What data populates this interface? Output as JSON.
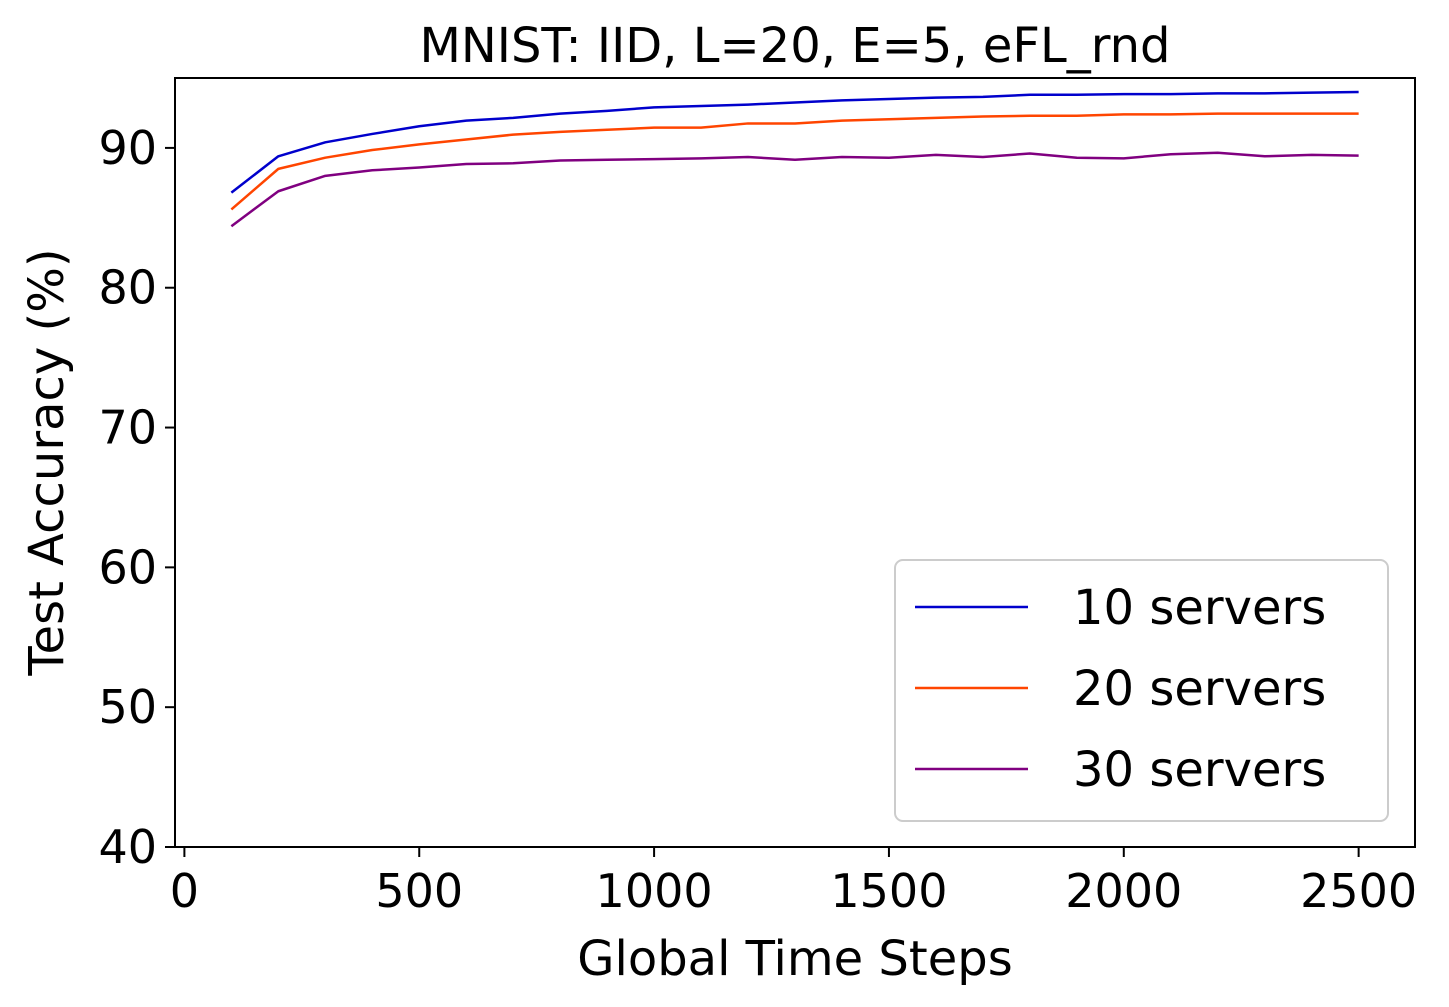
{
  "chart_data": {
    "type": "line",
    "title": "MNIST: IID, L=20, E=5, eFL_rnd",
    "xlabel": "Global Time Steps",
    "ylabel": "Test Accuracy (%)",
    "xlim": [
      -20,
      2620
    ],
    "ylim": [
      40,
      95
    ],
    "xticks": [
      0,
      500,
      1000,
      1500,
      2000,
      2500
    ],
    "yticks": [
      40,
      50,
      60,
      70,
      80,
      90
    ],
    "grid": false,
    "legend_position": "lower-right",
    "x": [
      100,
      200,
      300,
      400,
      500,
      600,
      700,
      800,
      900,
      1000,
      1100,
      1200,
      1300,
      1400,
      1500,
      1600,
      1700,
      1800,
      1900,
      2000,
      2100,
      2200,
      2300,
      2400,
      2500
    ],
    "series": [
      {
        "name": "10 servers",
        "color": "#0000cc",
        "values": [
          86.8,
          89.4,
          90.4,
          91.0,
          91.55,
          91.95,
          92.15,
          92.45,
          92.65,
          92.9,
          93.0,
          93.1,
          93.25,
          93.4,
          93.5,
          93.6,
          93.65,
          93.8,
          93.8,
          93.85,
          93.85,
          93.9,
          93.9,
          93.95,
          94.0
        ]
      },
      {
        "name": "20 servers",
        "color": "#ff4500",
        "values": [
          85.6,
          88.5,
          89.3,
          89.85,
          90.25,
          90.6,
          90.95,
          91.15,
          91.3,
          91.45,
          91.45,
          91.75,
          91.75,
          91.95,
          92.05,
          92.15,
          92.25,
          92.3,
          92.3,
          92.4,
          92.4,
          92.45,
          92.45,
          92.45,
          92.45
        ]
      },
      {
        "name": "30 servers",
        "color": "#800080",
        "values": [
          84.4,
          86.9,
          88.0,
          88.4,
          88.6,
          88.85,
          88.9,
          89.1,
          89.15,
          89.2,
          89.25,
          89.35,
          89.15,
          89.35,
          89.3,
          89.5,
          89.35,
          89.6,
          89.3,
          89.25,
          89.55,
          89.65,
          89.4,
          89.5,
          89.45
        ]
      }
    ]
  }
}
